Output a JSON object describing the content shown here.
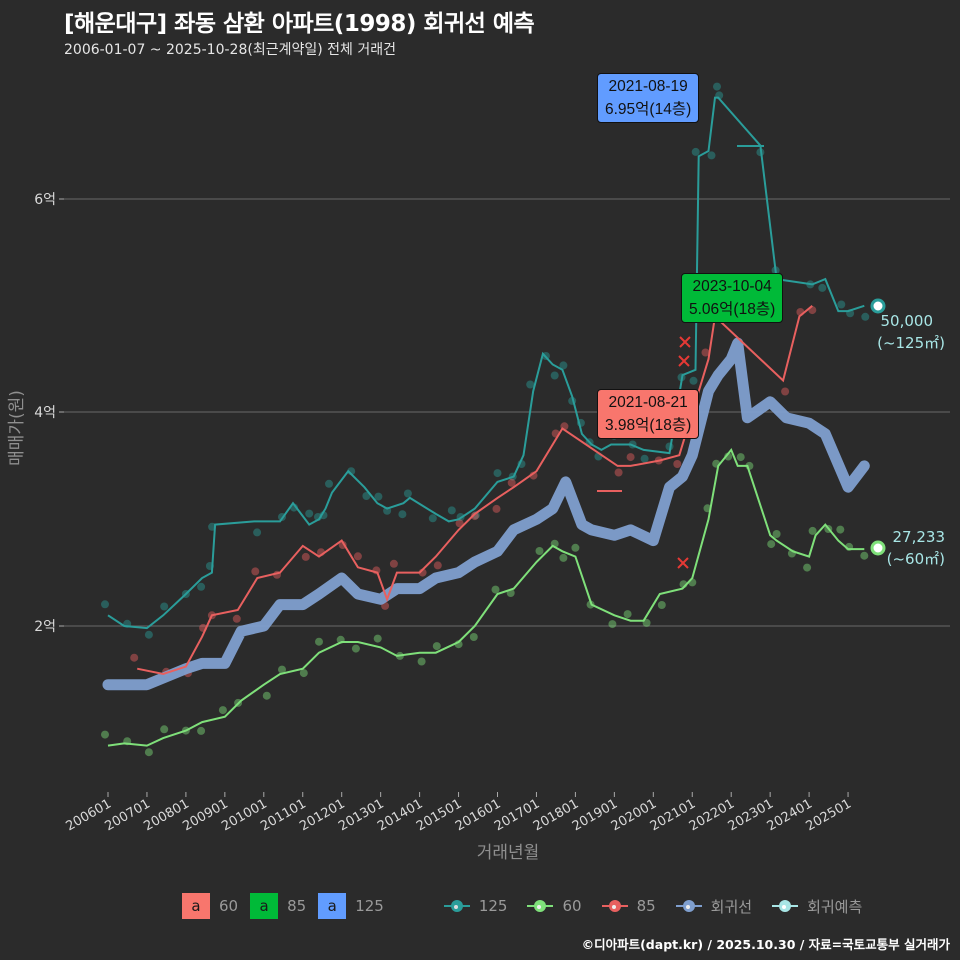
{
  "header": {
    "title": "[해운대구] 좌동 삼환 아파트(1998) 회귀선 예측",
    "subtitle": "2006-01-07 ~ 2025-10-28(최근계약일) 전체 거래건"
  },
  "axes": {
    "y_title": "매매가(원)",
    "x_title": "거래년월",
    "y_ticks": [
      "2억",
      "4억",
      "6억"
    ],
    "x_ticks": [
      "200601",
      "200701",
      "200801",
      "200901",
      "201001",
      "201101",
      "201201",
      "201301",
      "201401",
      "201501",
      "201601",
      "201701",
      "201801",
      "201901",
      "202001",
      "202101",
      "202201",
      "202301",
      "202401",
      "202501"
    ]
  },
  "callouts": [
    {
      "date": "2021-08-19",
      "value": "6.95억(14층)",
      "color": "#619cff"
    },
    {
      "date": "2023-10-04",
      "value": "5.06억(18층)",
      "color": "#00ba38"
    },
    {
      "date": "2021-08-21",
      "value": "3.98억(18층)",
      "color": "#f8766d"
    }
  ],
  "end_labels": [
    {
      "value": "50,000",
      "area": "(~125㎡)"
    },
    {
      "value": "27,233",
      "area": "(~60㎡)"
    }
  ],
  "legend": {
    "fill": [
      {
        "glyph": "a",
        "label": "60",
        "color": "#f8766d"
      },
      {
        "glyph": "a",
        "label": "85",
        "color": "#00ba38"
      },
      {
        "glyph": "a",
        "label": "125",
        "color": "#619cff"
      }
    ],
    "lines": [
      {
        "label": "125",
        "color": "#2a9d9a"
      },
      {
        "label": "60",
        "color": "#7fe07a"
      },
      {
        "label": "85",
        "color": "#e8605f"
      },
      {
        "label": "회귀선",
        "color": "#7f9fcf"
      },
      {
        "label": "회귀예측",
        "color": "#a8e6e6"
      }
    ]
  },
  "credit": "©디아파트(dapt.kr) / 2025.10.30 / 자료=국토교통부 실거래가",
  "chart_data": {
    "type": "line",
    "title": "[해운대구] 좌동 삼환 아파트(1998) 회귀선 예측",
    "subtitle": "2006-01-07 ~ 2025-10-28(최근계약일) 전체 거래건",
    "xlabel": "거래년월",
    "ylabel": "매매가(원)",
    "ylim_eok": [
      0.45,
      7.1
    ],
    "y_ticks_eok": [
      2,
      4,
      6
    ],
    "grid": "horizontal major",
    "legend_position": "bottom",
    "units": "억원 (100M KRW)",
    "series": [
      {
        "name": "125",
        "color": "#2a9d9a",
        "x": [
          "2006-01",
          "2006-06",
          "2007-01",
          "2007-06",
          "2008-01",
          "2008-06",
          "2008-09",
          "2008-10",
          "2009-10",
          "2010-06",
          "2010-10",
          "2011-03",
          "2011-06",
          "2011-08",
          "2011-10",
          "2012-03",
          "2012-08",
          "2012-12",
          "2013-03",
          "2013-08",
          "2013-10",
          "2014-06",
          "2014-10",
          "2015-01",
          "2015-06",
          "2016-01",
          "2016-06",
          "2016-09",
          "2016-12",
          "2017-03",
          "2017-06",
          "2017-09",
          "2017-12",
          "2018-03",
          "2018-06",
          "2018-09",
          "2018-12",
          "2019-06",
          "2019-10",
          "2020-06",
          "2020-10",
          "2021-02",
          "2021-03",
          "2021-06",
          "2021-08",
          "2021-09",
          "2022-10",
          "2023-03",
          "2024-02",
          "2024-06",
          "2024-10",
          "2025-01",
          "2025-06"
        ],
        "values": [
          2.1,
          2.0,
          1.98,
          2.1,
          2.3,
          2.45,
          2.5,
          2.95,
          2.98,
          2.98,
          3.15,
          2.95,
          3.0,
          3.1,
          3.25,
          3.45,
          3.3,
          3.15,
          3.1,
          3.15,
          3.2,
          3.05,
          2.98,
          3.0,
          3.1,
          3.35,
          3.4,
          3.6,
          4.2,
          4.55,
          4.45,
          4.4,
          4.15,
          3.8,
          3.7,
          3.65,
          3.7,
          3.7,
          3.65,
          3.62,
          4.35,
          4.4,
          6.4,
          6.45,
          6.95,
          6.95,
          6.5,
          5.25,
          5.2,
          5.25,
          4.95,
          4.95,
          5.0
        ]
      },
      {
        "name": "85",
        "color": "#e8605f",
        "x": [
          "2006-10",
          "2007-06",
          "2008-01",
          "2008-06",
          "2008-09",
          "2009-05",
          "2009-11",
          "2010-06",
          "2011-01",
          "2011-06",
          "2012-01",
          "2012-06",
          "2012-12",
          "2013-03",
          "2013-06",
          "2014-01",
          "2014-06",
          "2015-01",
          "2015-06",
          "2016-01",
          "2016-06",
          "2017-01",
          "2017-06",
          "2017-09",
          "2019-02",
          "2019-06",
          "2020-03",
          "2020-09",
          "2021-06",
          "2021-08",
          "2023-05",
          "2023-10",
          "2024-02"
        ],
        "values": [
          1.6,
          1.55,
          1.62,
          1.9,
          2.1,
          2.15,
          2.45,
          2.5,
          2.75,
          2.65,
          2.8,
          2.55,
          2.5,
          2.25,
          2.5,
          2.5,
          2.65,
          2.9,
          3.05,
          3.2,
          3.3,
          3.45,
          3.7,
          3.85,
          3.5,
          3.5,
          3.55,
          3.6,
          4.5,
          4.9,
          4.3,
          4.9,
          5.0
        ]
      },
      {
        "name": "60",
        "color": "#7fe07a",
        "x": [
          "2006-01",
          "2006-06",
          "2007-01",
          "2007-06",
          "2008-01",
          "2008-06",
          "2009-01",
          "2009-06",
          "2010-01",
          "2010-06",
          "2011-01",
          "2011-06",
          "2012-01",
          "2012-06",
          "2013-01",
          "2013-06",
          "2014-01",
          "2014-06",
          "2015-01",
          "2015-06",
          "2016-01",
          "2016-06",
          "2017-01",
          "2017-06",
          "2017-09",
          "2018-01",
          "2018-06",
          "2019-01",
          "2019-06",
          "2019-10",
          "2020-03",
          "2020-10",
          "2021-01",
          "2021-06",
          "2021-09",
          "2022-01",
          "2022-03",
          "2022-06",
          "2023-01",
          "2023-03",
          "2023-08",
          "2024-01",
          "2024-03",
          "2024-06",
          "2024-10",
          "2025-01",
          "2025-06"
        ],
        "values": [
          0.88,
          0.9,
          0.88,
          0.95,
          1.02,
          1.1,
          1.15,
          1.3,
          1.45,
          1.55,
          1.6,
          1.75,
          1.85,
          1.85,
          1.8,
          1.72,
          1.75,
          1.75,
          1.85,
          2.0,
          2.3,
          2.35,
          2.6,
          2.75,
          2.7,
          2.65,
          2.2,
          2.1,
          2.05,
          2.05,
          2.3,
          2.35,
          2.45,
          3.0,
          3.5,
          3.65,
          3.5,
          3.5,
          2.85,
          2.8,
          2.7,
          2.65,
          2.85,
          2.95,
          2.8,
          2.72,
          2.72
        ]
      },
      {
        "name": "회귀선",
        "color": "#7f9fcf",
        "x": [
          "2006-01",
          "2007-01",
          "2008-01",
          "2008-06",
          "2009-01",
          "2009-06",
          "2010-01",
          "2010-06",
          "2011-01",
          "2011-06",
          "2012-01",
          "2012-06",
          "2013-01",
          "2013-06",
          "2014-01",
          "2014-06",
          "2015-01",
          "2015-06",
          "2016-01",
          "2016-06",
          "2017-01",
          "2017-06",
          "2017-10",
          "2018-03",
          "2018-06",
          "2019-01",
          "2019-06",
          "2020-01",
          "2020-06",
          "2020-10",
          "2021-01",
          "2021-06",
          "2021-09",
          "2022-01",
          "2022-03",
          "2022-06",
          "2023-01",
          "2023-06",
          "2024-01",
          "2024-06",
          "2025-01",
          "2025-06"
        ],
        "values": [
          1.45,
          1.45,
          1.6,
          1.65,
          1.65,
          1.95,
          2.0,
          2.2,
          2.2,
          2.3,
          2.45,
          2.3,
          2.25,
          2.35,
          2.35,
          2.45,
          2.5,
          2.6,
          2.7,
          2.9,
          3.0,
          3.1,
          3.35,
          2.95,
          2.9,
          2.85,
          2.9,
          2.8,
          3.3,
          3.4,
          3.6,
          4.2,
          4.35,
          4.5,
          4.65,
          3.95,
          4.1,
          3.95,
          3.9,
          3.8,
          3.3,
          3.5
        ]
      }
    ],
    "annotations": [
      {
        "series": "125",
        "date": "2021-08-19",
        "label": "6.95억(14층)"
      },
      {
        "series": "85",
        "date": "2023-10-04",
        "label": "5.06억(18층)"
      },
      {
        "series": "60",
        "date": "2021-08-21",
        "label": "3.98억(18층)"
      },
      {
        "series": "회귀예측 125",
        "date": "2025-10",
        "value_man_won": 50000,
        "label": "50,000 (~125㎡)"
      },
      {
        "series": "회귀예측 60",
        "date": "2025-10",
        "value_man_won": 27233,
        "label": "27,233 (~60㎡)"
      }
    ]
  }
}
